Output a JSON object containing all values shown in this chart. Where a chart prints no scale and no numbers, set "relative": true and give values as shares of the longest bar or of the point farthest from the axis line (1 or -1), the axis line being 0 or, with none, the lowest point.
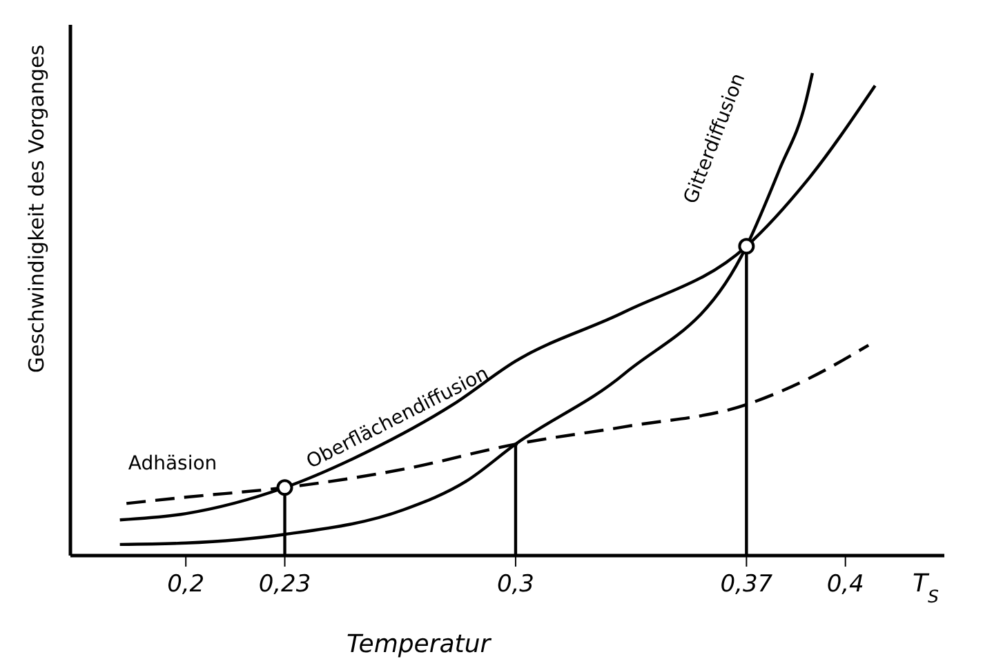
{
  "chart_data": {
    "type": "line",
    "relative": true,
    "xlabel": "Temperatur",
    "ylabel": "Geschwindigkeit des Vorganges",
    "annotations": [
      "T$_{S}$"
    ],
    "xlim": [
      0.165,
      0.43
    ],
    "xticks": [
      {
        "value": 0.2,
        "label": "0,2"
      },
      {
        "value": 0.23,
        "label": "0,23"
      },
      {
        "value": 0.3,
        "label": "0,3"
      },
      {
        "value": 0.37,
        "label": "0,37"
      },
      {
        "value": 0.4,
        "label": "0,4"
      }
    ],
    "marker": "none",
    "grid": false,
    "legend": false,
    "series": [
      {
        "name": "Adhäsion",
        "color": "#000000",
        "line_style": "dashed",
        "x": [
          0.182,
          0.2,
          0.23,
          0.266,
          0.3,
          0.333,
          0.37,
          0.388,
          0.407
        ],
        "values": [
          0.108,
          0.121,
          0.141,
          0.179,
          0.231,
          0.267,
          0.313,
          0.364,
          0.436
        ]
      },
      {
        "name": "Oberflächendiffusion",
        "color": "#000000",
        "line_style": "solid",
        "x": [
          0.18,
          0.2,
          0.23,
          0.255,
          0.281,
          0.3,
          0.333,
          0.37,
          0.388,
          0.409
        ],
        "values": [
          0.074,
          0.087,
          0.141,
          0.215,
          0.313,
          0.403,
          0.505,
          0.641,
          0.774,
          0.974
        ]
      },
      {
        "name": "Gitterdiffusion",
        "color": "#000000",
        "line_style": "solid",
        "x": [
          0.18,
          0.2,
          0.23,
          0.266,
          0.285,
          0.3,
          0.333,
          0.37,
          0.38,
          0.388,
          0.39
        ],
        "values": [
          0.023,
          0.026,
          0.044,
          0.095,
          0.154,
          0.231,
          0.377,
          0.641,
          0.8,
          0.941,
          1
        ]
      },
      {
        "type": "line",
        "color": "#000000",
        "line_style": "solid",
        "x": [
          0.23,
          0.23
        ],
        "values": [
          0,
          0.141
        ]
      },
      {
        "type": "line",
        "color": "#000000",
        "line_style": "solid",
        "x": [
          0.3,
          0.3
        ],
        "values": [
          0,
          0.231
        ]
      },
      {
        "type": "line",
        "color": "#000000",
        "line_style": "solid",
        "x": [
          0.37,
          0.37
        ],
        "values": [
          0,
          0.641
        ]
      },
      {
        "type": "scatter",
        "marker": "circle",
        "color": "#000000",
        "x": [
          0.23,
          0.37
        ],
        "values": [
          0.141,
          0.641
        ]
      }
    ]
  }
}
